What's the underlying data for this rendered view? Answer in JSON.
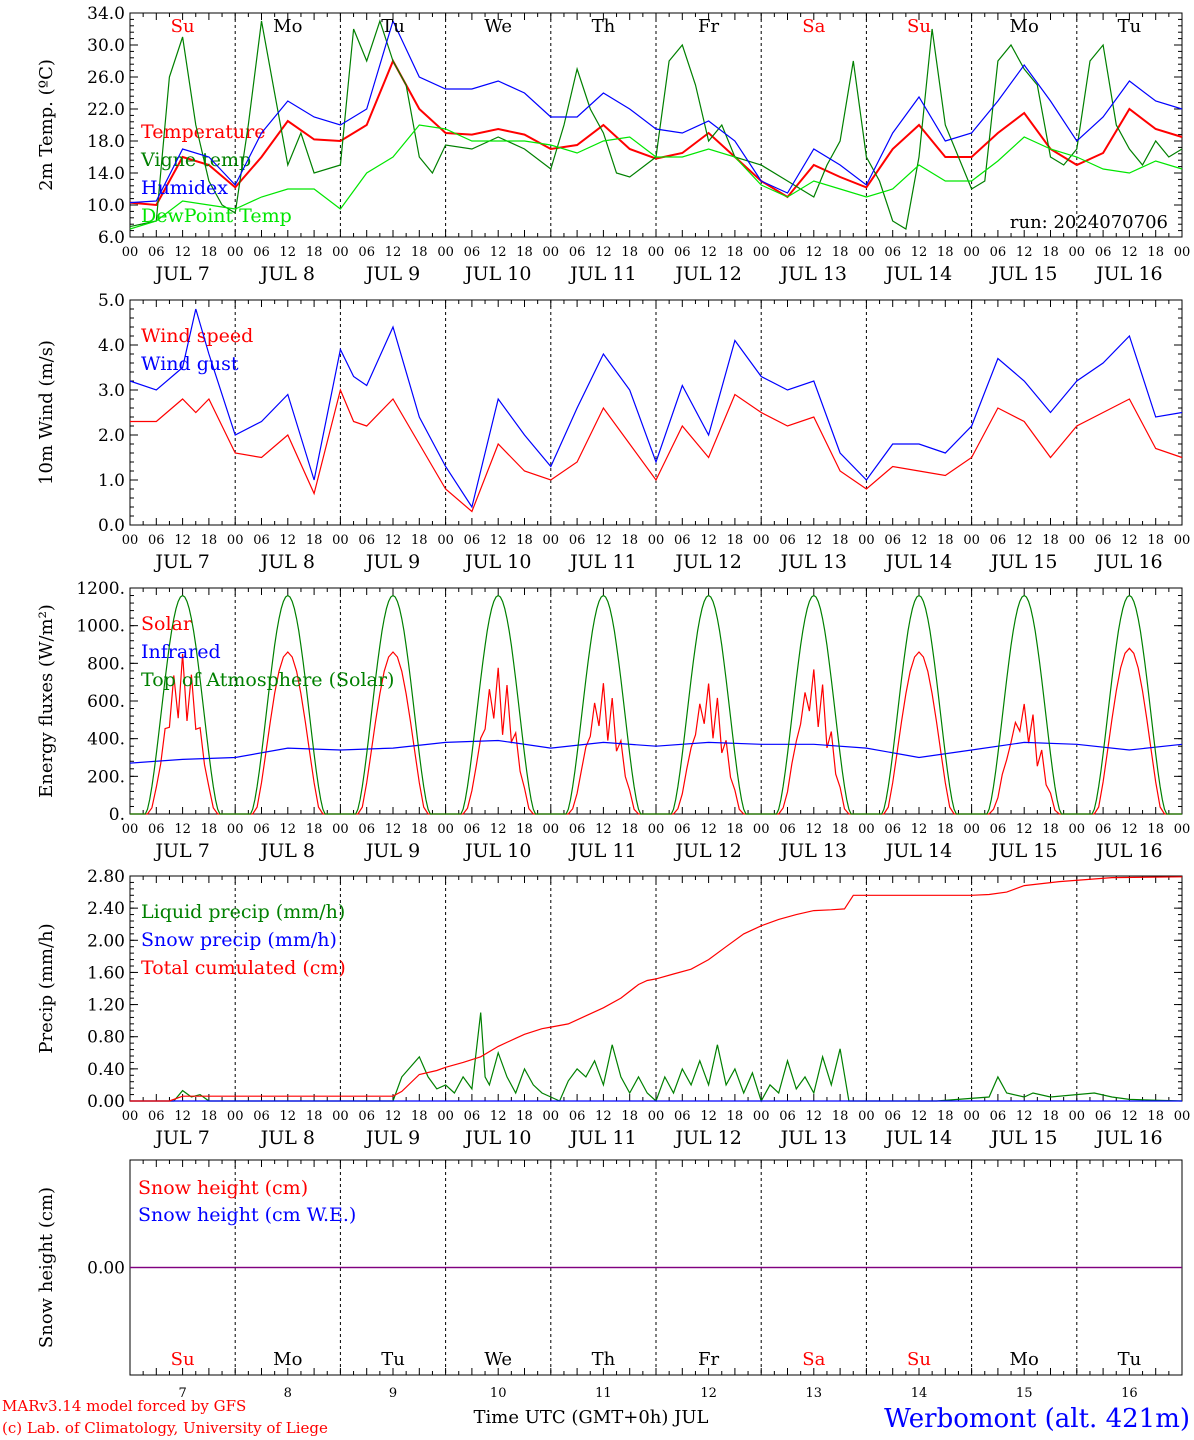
{
  "run_label": "run: 2024070706",
  "station": "Werbomont (alt. 421m)",
  "credit_line1": "MARv3.14 model forced by GFS",
  "credit_line2": "(c) Lab. of Climatology, University of Liege",
  "time_axis_title": "Time UTC (GMT+0h) JUL",
  "hour_ticks": [
    "00",
    "06",
    "12",
    "18"
  ],
  "final_hour_tick": "00",
  "days": [
    "JUL  7",
    "JUL  8",
    "JUL  9",
    "JUL 10",
    "JUL 11",
    "JUL 12",
    "JUL 13",
    "JUL 14",
    "JUL 15",
    "JUL 16"
  ],
  "day_numbers": [
    "7",
    "8",
    "9",
    "10",
    "11",
    "12",
    "13",
    "14",
    "15",
    "16"
  ],
  "weekdays": [
    "Su",
    "Mo",
    "Tu",
    "We",
    "Th",
    "Fr",
    "Sa",
    "Su",
    "Mo",
    "Tu"
  ],
  "weekday_colors": [
    "#ff0000",
    "#000000",
    "#000000",
    "#000000",
    "#000000",
    "#000000",
    "#ff0000",
    "#ff0000",
    "#000000",
    "#000000"
  ],
  "colors": {
    "red": "#ff0000",
    "darkgreen": "#008000",
    "blue": "#0000ff",
    "lightgreen": "#00e600",
    "purple": "#800080"
  },
  "chart_data": [
    {
      "type": "line",
      "ylabel": "2m Temp. (ºC)",
      "ylim": [
        6,
        34
      ],
      "yticks": [
        "6.0",
        "10.0",
        "14.0",
        "18.0",
        "22.0",
        "26.0",
        "30.0",
        "34.0"
      ],
      "x_unit": "hours since JUL 7 00 UTC",
      "xlim": [
        0,
        240
      ],
      "series": [
        {
          "name": "Temperature",
          "color": "#ff0000",
          "x": [
            0,
            6,
            12,
            18,
            24,
            30,
            36,
            42,
            48,
            54,
            60,
            66,
            72,
            78,
            84,
            90,
            96,
            102,
            108,
            114,
            120,
            126,
            132,
            138,
            144,
            150,
            156,
            162,
            168,
            174,
            180,
            186,
            192,
            198,
            204,
            210,
            216,
            222,
            228,
            234,
            240
          ],
          "y": [
            10.3,
            10,
            16,
            15,
            12.2,
            16,
            20.5,
            18.2,
            18,
            20,
            28,
            22,
            19,
            18.8,
            19.5,
            18.8,
            17,
            17.5,
            20,
            17,
            15.8,
            16.5,
            19,
            16,
            13,
            11,
            15,
            13.5,
            12.2,
            17,
            20,
            16,
            16,
            19,
            21.5,
            17,
            15,
            16.5,
            22,
            19.5,
            18.5
          ]
        },
        {
          "name": "Vigne temp",
          "color": "#008000",
          "x": [
            0,
            6,
            9,
            12,
            15,
            18,
            21,
            24,
            27,
            30,
            33,
            36,
            39,
            42,
            48,
            51,
            54,
            57,
            60,
            63,
            66,
            69,
            72,
            78,
            84,
            90,
            96,
            99,
            102,
            105,
            108,
            111,
            114,
            120,
            123,
            126,
            129,
            132,
            135,
            138,
            144,
            150,
            153,
            156,
            159,
            162,
            165,
            168,
            171,
            174,
            177,
            180,
            183,
            186,
            192,
            195,
            198,
            201,
            204,
            207,
            210,
            213,
            216,
            219,
            222,
            225,
            228,
            231,
            234,
            237,
            240
          ],
          "y": [
            7.3,
            8,
            26,
            31,
            20,
            13,
            10,
            9,
            20,
            33,
            24,
            15,
            19,
            14,
            15,
            32,
            28,
            33,
            28,
            25,
            16,
            14,
            17.5,
            17,
            18.5,
            17,
            14.5,
            20,
            27,
            22,
            19,
            14,
            13.5,
            16,
            28,
            30,
            25,
            18,
            20,
            16,
            15,
            13,
            12,
            11,
            15,
            18,
            28,
            16,
            13,
            8,
            7,
            16,
            32,
            20,
            12,
            13,
            28,
            30,
            27,
            25,
            16,
            15,
            17,
            28,
            30,
            20,
            17,
            15,
            18,
            16,
            17
          ]
        },
        {
          "name": "Humidex",
          "color": "#0000ff",
          "x": [
            0,
            6,
            12,
            18,
            24,
            30,
            36,
            42,
            48,
            54,
            60,
            66,
            72,
            78,
            84,
            90,
            96,
            102,
            108,
            114,
            120,
            126,
            132,
            138,
            144,
            150,
            156,
            162,
            168,
            174,
            180,
            186,
            192,
            198,
            204,
            210,
            216,
            222,
            228,
            234,
            240
          ],
          "y": [
            10.3,
            10.5,
            17,
            16,
            12.5,
            19,
            23,
            21,
            20,
            22,
            33,
            26,
            24.5,
            24.5,
            25.5,
            24,
            21,
            21,
            24,
            22,
            19.5,
            19,
            20.5,
            18,
            13,
            11.5,
            17,
            15,
            12.5,
            19,
            23.5,
            18,
            19,
            23,
            27.5,
            23,
            18,
            21,
            25.5,
            23,
            22
          ]
        },
        {
          "name": "DewPoint Temp",
          "color": "#00e600",
          "x": [
            0,
            6,
            12,
            18,
            24,
            30,
            36,
            42,
            48,
            54,
            60,
            66,
            72,
            78,
            84,
            90,
            96,
            102,
            108,
            114,
            120,
            126,
            132,
            138,
            144,
            150,
            156,
            162,
            168,
            174,
            180,
            186,
            192,
            198,
            204,
            210,
            216,
            222,
            228,
            234,
            240
          ],
          "y": [
            7,
            8,
            10.5,
            10,
            9.5,
            11,
            12,
            12,
            9.5,
            14,
            16,
            20,
            19.5,
            18,
            18,
            18,
            17.5,
            16.5,
            18,
            18.5,
            16,
            16,
            17,
            16,
            12.5,
            11,
            13,
            12,
            11,
            12,
            15,
            13,
            13,
            15.5,
            18.5,
            17,
            16,
            14.5,
            14,
            15.5,
            14.5
          ]
        }
      ]
    },
    {
      "type": "line",
      "ylabel": "10m Wind (m/s)",
      "ylim": [
        0,
        5
      ],
      "yticks": [
        "0.0",
        "1.0",
        "2.0",
        "3.0",
        "4.0",
        "5.0"
      ],
      "x_unit": "hours since JUL 7 00 UTC",
      "xlim": [
        0,
        240
      ],
      "series": [
        {
          "name": "Wind speed",
          "color": "#ff0000",
          "x": [
            0,
            6,
            12,
            15,
            18,
            24,
            30,
            36,
            42,
            48,
            51,
            54,
            60,
            66,
            72,
            78,
            84,
            90,
            96,
            102,
            108,
            114,
            120,
            126,
            132,
            138,
            144,
            150,
            156,
            162,
            168,
            174,
            180,
            186,
            192,
            198,
            204,
            210,
            216,
            222,
            228,
            234,
            240
          ],
          "y": [
            2.3,
            2.3,
            2.8,
            2.5,
            2.8,
            1.6,
            1.5,
            2,
            0.7,
            3,
            2.3,
            2.2,
            2.8,
            1.8,
            0.8,
            0.3,
            1.8,
            1.2,
            1,
            1.4,
            2.6,
            1.8,
            1,
            2.2,
            1.5,
            2.9,
            2.5,
            2.2,
            2.4,
            1.2,
            0.8,
            1.3,
            1.2,
            1.1,
            1.5,
            2.6,
            2.3,
            1.5,
            2.2,
            2.5,
            2.8,
            1.7,
            1.5
          ]
        },
        {
          "name": "Wind gust",
          "color": "#0000ff",
          "x": [
            0,
            6,
            12,
            15,
            18,
            24,
            30,
            36,
            42,
            48,
            51,
            54,
            60,
            66,
            72,
            78,
            84,
            90,
            96,
            102,
            108,
            114,
            120,
            126,
            132,
            138,
            144,
            150,
            156,
            162,
            168,
            174,
            180,
            186,
            192,
            198,
            204,
            210,
            216,
            222,
            228,
            234,
            240
          ],
          "y": [
            3.2,
            3,
            3.5,
            4.8,
            3.8,
            2,
            2.3,
            2.9,
            1,
            3.9,
            3.3,
            3.1,
            4.4,
            2.4,
            1.3,
            0.4,
            2.8,
            2,
            1.3,
            2.6,
            3.8,
            3,
            1.4,
            3.1,
            2,
            4.1,
            3.3,
            3.0,
            3.2,
            1.6,
            1,
            1.8,
            1.8,
            1.6,
            2.2,
            3.7,
            3.2,
            2.5,
            3.2,
            3.6,
            4.2,
            2.4,
            2.5
          ]
        }
      ]
    },
    {
      "type": "line",
      "ylabel": "Energy fluxes (W/m²)",
      "ylim": [
        0,
        1200
      ],
      "yticks": [
        "0.",
        "200.",
        "400.",
        "600.",
        "800.",
        "1000.",
        "1200."
      ],
      "x_unit": "hours since JUL 7 00 UTC",
      "xlim": [
        0,
        240
      ],
      "series": [
        {
          "name": "Solar",
          "color": "#ff0000",
          "peaks": [
            850,
            860,
            860,
            780,
            700,
            700,
            780,
            860,
            600,
            880
          ]
        },
        {
          "name": "Infrared",
          "color": "#0000ff",
          "x": [
            0,
            12,
            24,
            36,
            48,
            60,
            72,
            84,
            96,
            108,
            120,
            132,
            144,
            156,
            168,
            180,
            192,
            204,
            216,
            228,
            240
          ],
          "y": [
            270,
            290,
            300,
            350,
            340,
            350,
            380,
            390,
            350,
            380,
            360,
            380,
            370,
            370,
            350,
            300,
            340,
            380,
            370,
            340,
            370
          ]
        },
        {
          "name": "Top of Atmosphere (Solar)",
          "color": "#008000",
          "peak": 1160
        }
      ]
    },
    {
      "type": "line",
      "ylabel": "Precip (mm/h)",
      "ylim": [
        0,
        2.8
      ],
      "yticks": [
        "0.00",
        "0.40",
        "0.80",
        "1.20",
        "1.60",
        "2.00",
        "2.40",
        "2.80"
      ],
      "x_unit": "hours since JUL 7 00 UTC",
      "xlim": [
        0,
        240
      ],
      "series": [
        {
          "name": "Liquid precip (mm/h)",
          "color": "#008000",
          "x": [
            0,
            10,
            12,
            14,
            16,
            18,
            60,
            62,
            66,
            68,
            70,
            72,
            74,
            76,
            78,
            80,
            81,
            82,
            84,
            86,
            88,
            90,
            92,
            94,
            96,
            98,
            100,
            102,
            104,
            106,
            108,
            110,
            112,
            114,
            116,
            118,
            120,
            122,
            124,
            126,
            128,
            130,
            132,
            134,
            136,
            138,
            140,
            142,
            144,
            146,
            148,
            150,
            152,
            154,
            156,
            158,
            160,
            162,
            164,
            184,
            196,
            198,
            200,
            204,
            206,
            210,
            220,
            224,
            228,
            240
          ],
          "y": [
            0,
            0,
            0.13,
            0.05,
            0.08,
            0,
            0,
            0.3,
            0.55,
            0.3,
            0.15,
            0.2,
            0.1,
            0.3,
            0.15,
            1.1,
            0.3,
            0.2,
            0.6,
            0.3,
            0.1,
            0.4,
            0.2,
            0.1,
            0.05,
            0.0,
            0.25,
            0.4,
            0.3,
            0.5,
            0.2,
            0.7,
            0.3,
            0.1,
            0.3,
            0.1,
            0.0,
            0.3,
            0.1,
            0.4,
            0.2,
            0.5,
            0.2,
            0.7,
            0.2,
            0.4,
            0.1,
            0.35,
            0.0,
            0.2,
            0.1,
            0.5,
            0.15,
            0.3,
            0.1,
            0.55,
            0.2,
            0.65,
            0.0,
            0.0,
            0.05,
            0.3,
            0.1,
            0.05,
            0.1,
            0.05,
            0.1,
            0.05,
            0.02,
            0.0
          ]
        },
        {
          "name": "Snow precip (mm/h)",
          "color": "#0000ff",
          "x": [
            0,
            240
          ],
          "y": [
            0,
            0
          ]
        },
        {
          "name": "Total cumulated (cm)",
          "color": "#ff0000",
          "x": [
            0,
            9,
            12,
            20,
            60,
            62,
            66,
            70,
            72,
            76,
            80,
            84,
            88,
            90,
            94,
            96,
            100,
            104,
            108,
            112,
            116,
            118,
            120,
            124,
            128,
            132,
            136,
            140,
            144,
            148,
            152,
            156,
            160,
            163,
            165,
            176,
            192,
            196,
            200,
            204,
            212,
            224,
            240
          ],
          "y": [
            0,
            0,
            0.06,
            0.06,
            0.06,
            0.12,
            0.33,
            0.38,
            0.42,
            0.48,
            0.55,
            0.68,
            0.78,
            0.83,
            0.9,
            0.92,
            0.96,
            1.06,
            1.16,
            1.28,
            1.45,
            1.5,
            1.52,
            1.58,
            1.64,
            1.76,
            1.92,
            2.08,
            2.18,
            2.26,
            2.32,
            2.37,
            2.38,
            2.39,
            2.56,
            2.56,
            2.56,
            2.57,
            2.6,
            2.68,
            2.73,
            2.78,
            2.79
          ]
        }
      ]
    },
    {
      "type": "line",
      "ylabel": "Snow height (cm)",
      "ylim": [
        -1,
        1
      ],
      "yticks": [
        "0.00"
      ],
      "x_unit": "hours since JUL 7 00 UTC",
      "xlim": [
        0,
        240
      ],
      "series": [
        {
          "name": "Snow height (cm)",
          "color": "#ff0000",
          "x": [
            0,
            240
          ],
          "y": [
            0,
            0
          ]
        },
        {
          "name": "Snow height (cm W.E.)",
          "color": "#0000ff",
          "x": [
            0,
            240
          ],
          "y": [
            0,
            0
          ]
        }
      ]
    }
  ]
}
